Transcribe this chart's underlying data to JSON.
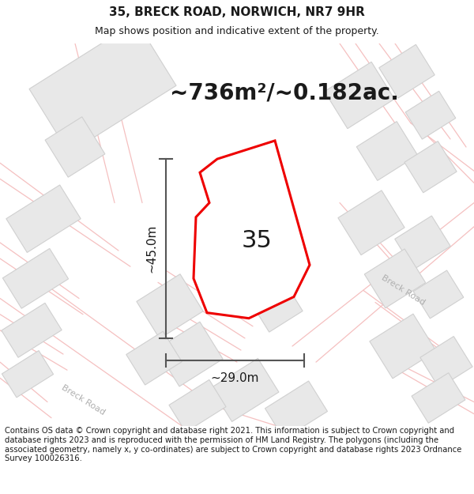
{
  "title_line1": "35, BRECK ROAD, NORWICH, NR7 9HR",
  "title_line2": "Map shows position and indicative extent of the property.",
  "area_text": "~736m²/~0.182ac.",
  "label_35": "35",
  "dim_height": "~45.0m",
  "dim_width": "~29.0m",
  "footer_text": "Contains OS data © Crown copyright and database right 2021. This information is subject to Crown copyright and database rights 2023 and is reproduced with the permission of HM Land Registry. The polygons (including the associated geometry, namely x, y co-ordinates) are subject to Crown copyright and database rights 2023 Ordnance Survey 100026316.",
  "bg_color": "#ffffff",
  "map_bg": "#ffffff",
  "road_line_color": "#f5c0c0",
  "building_face_color": "#e8e8e8",
  "building_edge_color": "#d0d0d0",
  "road_label_color": "#b0b0b0",
  "red_poly_color": "#ee0000",
  "dim_line_color": "#555555",
  "text_color": "#1a1a1a",
  "title_fontsize": 11,
  "subtitle_fontsize": 9,
  "area_fontsize": 20,
  "label_fontsize": 22,
  "dim_fontsize": 11,
  "footer_fontsize": 7.2
}
